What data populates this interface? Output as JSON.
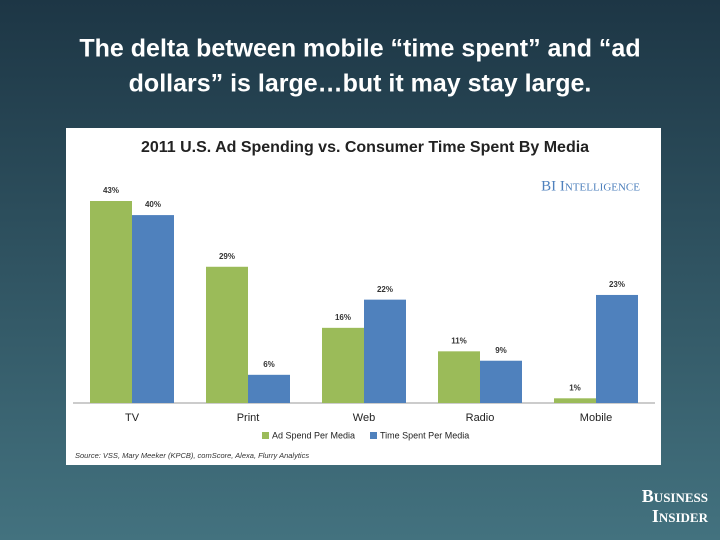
{
  "slide": {
    "headline": [
      "The delta between mobile “time spent” and “ad",
      "dollars” is large…but it may stay large."
    ],
    "logo": [
      "Business",
      "Insider"
    ]
  },
  "chart_data": {
    "type": "bar",
    "title": "2011 U.S. Ad Spending vs. Consumer Time Spent By Media",
    "brand": "BI Intelligence",
    "source": "Source: VSS, Mary Meeker (KPCB), comScore, Alexa, Flurry Analytics",
    "categories": [
      "TV",
      "Print",
      "Web",
      "Radio",
      "Mobile"
    ],
    "series": [
      {
        "name": "Ad Spend Per Media",
        "color": "#9bbb59",
        "values": [
          43,
          29,
          16,
          11,
          1
        ],
        "value_labels": [
          "43%",
          "29%",
          "16%",
          "11%",
          "1%"
        ]
      },
      {
        "name": "Time Spent Per Media",
        "color": "#4f81bd",
        "values": [
          40,
          6,
          22,
          9,
          23
        ],
        "value_labels": [
          "40%",
          "6%",
          "22%",
          "9%",
          "23%"
        ]
      }
    ],
    "legend": "bottom"
  }
}
